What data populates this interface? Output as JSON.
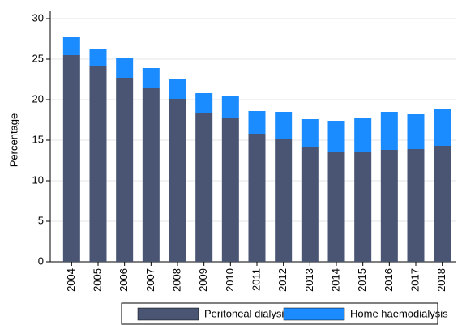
{
  "chart_data": {
    "type": "stacked_bar",
    "y_label": "Percentage",
    "categories": [
      "2004",
      "2005",
      "2006",
      "2007",
      "2008",
      "2009",
      "2010",
      "2011",
      "2012",
      "2013",
      "2014",
      "2015",
      "2016",
      "2017",
      "2018"
    ],
    "series": [
      {
        "name": "Peritoneal dialysis",
        "color": "#4a5573",
        "values": [
          25.5,
          24.2,
          22.7,
          21.4,
          20.1,
          18.3,
          17.7,
          15.8,
          15.2,
          14.2,
          13.6,
          13.5,
          13.8,
          13.9,
          14.3
        ]
      },
      {
        "name": "Home haemodialysis",
        "color": "#1a8cff",
        "values": [
          2.2,
          2.1,
          2.4,
          2.5,
          2.5,
          2.5,
          2.7,
          2.8,
          3.3,
          3.4,
          3.8,
          4.3,
          4.7,
          4.3,
          4.5
        ]
      }
    ],
    "ylim": [
      0,
      30
    ],
    "yticks": [
      0,
      5,
      10,
      15,
      20,
      25,
      30
    ],
    "grid": true,
    "legend": "bottom"
  }
}
